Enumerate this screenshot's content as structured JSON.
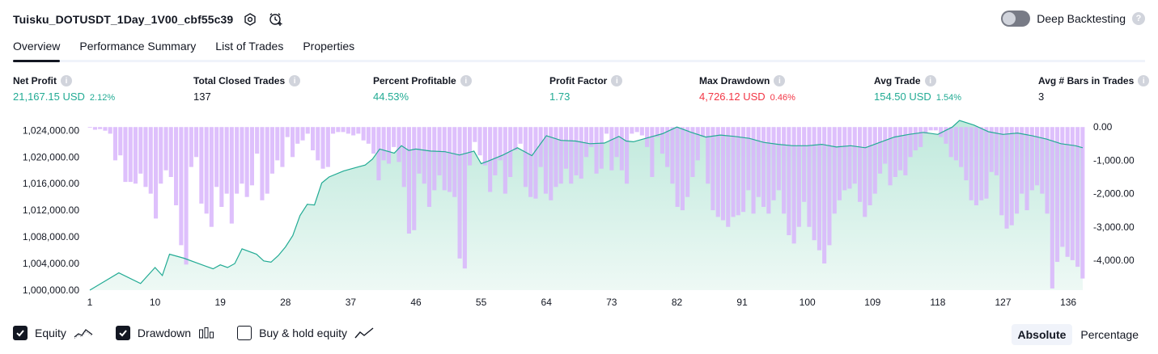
{
  "header": {
    "title": "Tuisku_DOTUSDT_1Day_1V00_cbf55c39",
    "deep_backtesting_label": "Deep Backtesting",
    "help_glyph": "?"
  },
  "tabs": [
    {
      "label": "Overview",
      "active": true
    },
    {
      "label": "Performance Summary",
      "active": false
    },
    {
      "label": "List of Trades",
      "active": false
    },
    {
      "label": "Properties",
      "active": false
    }
  ],
  "metrics": {
    "info_glyph": "i",
    "net_profit": {
      "label": "Net Profit",
      "value": "21,167.15 USD",
      "pct": "2.12%"
    },
    "total_closed_trades": {
      "label": "Total Closed Trades",
      "value": "137"
    },
    "percent_profitable": {
      "label": "Percent Profitable",
      "value": "44.53%"
    },
    "profit_factor": {
      "label": "Profit Factor",
      "value": "1.73"
    },
    "max_drawdown": {
      "label": "Max Drawdown",
      "value": "4,726.12 USD",
      "pct": "0.46%"
    },
    "avg_trade": {
      "label": "Avg Trade",
      "value": "154.50 USD",
      "pct": "1.54%"
    },
    "avg_bars": {
      "label": "Avg # Bars in Trades",
      "value": "3"
    }
  },
  "legend": {
    "equity": {
      "label": "Equity",
      "checked": true,
      "icon": "equity-line-icon"
    },
    "drawdown": {
      "label": "Drawdown",
      "checked": true,
      "icon": "drawdown-bars-icon"
    },
    "buy_hold": {
      "label": "Buy & hold equity",
      "checked": false,
      "icon": "buy-hold-line-icon"
    }
  },
  "scale_toggle": {
    "absolute": "Absolute",
    "percentage": "Percentage",
    "selected": "Absolute"
  },
  "colors": {
    "equity_line": "#22ab94",
    "equity_fill": "#d4f0e8",
    "drawdown_bar": "#d8b5fb",
    "positive": "#22ab94",
    "negative": "#f23645"
  },
  "chart_data": {
    "type": "area",
    "x_ticks": [
      "1",
      "10",
      "19",
      "28",
      "37",
      "46",
      "55",
      "64",
      "73",
      "82",
      "91",
      "100",
      "109",
      "118",
      "127",
      "136"
    ],
    "left_axis": {
      "ylim": [
        1000000,
        1025500
      ],
      "tick_labels": [
        "1,024,000.00",
        "1,020,000.00",
        "1,016,000.00",
        "1,012,000.00",
        "1,008,000.00",
        "1,004,000.00",
        "1,000,000.00"
      ],
      "ticks": [
        1024000,
        1020000,
        1016000,
        1012000,
        1008000,
        1004000,
        1000000
      ]
    },
    "right_axis": {
      "ylim": [
        -4900,
        200
      ],
      "tick_labels": [
        "0.00",
        "-1,000.00",
        "-2,000.00",
        "-3,000.00",
        "-4,000.00"
      ],
      "ticks": [
        0,
        -1000,
        -2000,
        -3000,
        -4000
      ]
    },
    "series": [
      {
        "name": "Equity",
        "x": [
          1,
          5,
          8,
          10,
          11,
          12,
          14,
          16,
          18,
          19,
          20,
          21,
          22,
          24,
          25,
          26,
          27,
          28,
          29,
          30,
          31,
          32,
          33,
          34,
          36,
          38,
          39,
          40,
          41,
          43,
          44,
          45,
          46,
          48,
          50,
          52,
          53,
          54,
          55,
          56,
          58,
          60,
          62,
          64,
          66,
          68,
          70,
          72,
          74,
          75,
          76,
          78,
          80,
          82,
          84,
          86,
          88,
          90,
          92,
          94,
          96,
          98,
          100,
          102,
          104,
          106,
          108,
          110,
          112,
          114,
          116,
          118,
          120,
          121,
          123,
          125,
          127,
          129,
          131,
          133,
          135,
          137,
          138
        ],
        "values": [
          1000000,
          1002600,
          1001000,
          1003400,
          1002200,
          1005400,
          1004800,
          1004000,
          1003200,
          1003800,
          1003400,
          1004000,
          1006200,
          1005400,
          1004400,
          1004200,
          1005200,
          1006500,
          1008200,
          1011200,
          1012900,
          1012800,
          1016100,
          1017000,
          1017900,
          1018500,
          1018800,
          1019700,
          1021200,
          1020600,
          1021700,
          1021000,
          1021200,
          1020900,
          1020800,
          1020300,
          1020600,
          1020900,
          1019000,
          1019400,
          1020300,
          1021400,
          1020200,
          1023200,
          1022500,
          1022400,
          1022000,
          1022100,
          1023100,
          1022400,
          1022300,
          1022900,
          1023500,
          1024500,
          1023700,
          1023000,
          1023300,
          1023100,
          1022800,
          1022200,
          1021900,
          1021700,
          1021700,
          1021900,
          1021500,
          1021700,
          1021400,
          1022200,
          1023000,
          1023400,
          1023700,
          1023400,
          1024500,
          1025500,
          1024800,
          1023800,
          1023400,
          1023600,
          1023200,
          1022700,
          1022000,
          1021700,
          1021400
        ]
      },
      {
        "name": "Drawdown",
        "values": [
          -20,
          -80,
          -60,
          -110,
          -200,
          -1000,
          -850,
          -1650,
          -1650,
          -1700,
          -1400,
          -1800,
          -2000,
          -2750,
          -1700,
          -1300,
          -1500,
          -2350,
          -3550,
          -4130,
          -1200,
          -900,
          -2300,
          -2600,
          -3000,
          -1800,
          -2400,
          -2000,
          -2900,
          -2000,
          -1700,
          -2100,
          -1750,
          -800,
          -2200,
          -2000,
          -1400,
          -1000,
          -1200,
          -300,
          -900,
          -500,
          -400,
          -200,
          -700,
          -1000,
          -1250,
          -1200,
          -200,
          -150,
          -150,
          -200,
          -250,
          -200,
          -400,
          -500,
          -800,
          -1600,
          -1000,
          -1100,
          -600,
          -1050,
          -1800,
          -3200,
          -3100,
          -1400,
          -1700,
          -2400,
          -1900,
          -1450,
          -1900,
          -1950,
          -2100,
          -3950,
          -4250,
          -1150,
          -450,
          -850,
          -1150,
          -1950,
          -1450,
          -1000,
          -2000,
          -1500,
          -700,
          -500,
          -1800,
          -2100,
          -2150,
          -1200,
          -2000,
          -2200,
          -1800,
          -1700,
          -1250,
          -1700,
          -1450,
          -1550,
          -900,
          -600,
          -1400,
          -1250,
          -200,
          -1300,
          -900,
          -1300,
          -1700,
          -200,
          -150,
          -250,
          -600,
          -1500,
          -300,
          -800,
          -1200,
          -1700,
          -2400,
          -2500,
          -2100,
          -1500,
          -1000,
          -300,
          -1700,
          -2500,
          -2700,
          -2800,
          -3000,
          -2700,
          -2650,
          -2550,
          -1900,
          -2600,
          -2100,
          -2400,
          -2600,
          -2200,
          -1900,
          -2600,
          -3250,
          -3500,
          -3000,
          -2250,
          -3000,
          -3400,
          -3700,
          -4100,
          -3550,
          -2600,
          -2200,
          -1900,
          -1850,
          -1700,
          -2250,
          -2700,
          -2350,
          -2000,
          -1400,
          -1100,
          -1750,
          -1500,
          -1300,
          -1450,
          -900,
          -700,
          -600,
          -200,
          -100,
          -100,
          -300,
          -500,
          -900,
          -1000,
          -1200,
          -1600,
          -2200,
          -2350,
          -2200,
          -2150,
          -1350,
          -1450,
          -2650,
          -3050,
          -2950,
          -2600,
          -2000,
          -2500,
          -1900,
          -1750,
          -2000,
          -2600,
          -4850,
          -4050,
          -3600,
          -3900,
          -4000,
          -4200,
          -4550
        ]
      }
    ]
  }
}
